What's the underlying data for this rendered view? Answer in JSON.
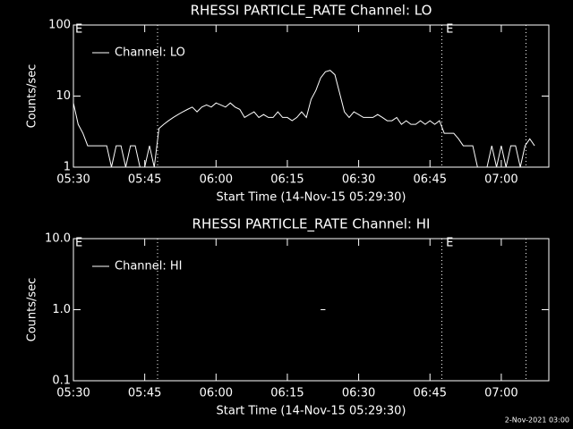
{
  "chart_data": [
    {
      "type": "line",
      "title": "RHESSI PARTICLE_RATE Channel: LO",
      "xlabel": "Start Time (14-Nov-15 05:29:30)",
      "ylabel": "Counts/sec",
      "log_y": true,
      "ylim": [
        1,
        100
      ],
      "yticks": [
        1,
        10,
        100
      ],
      "xlim": [
        0,
        100
      ],
      "xticks": [
        {
          "value": 0,
          "label": "05:30"
        },
        {
          "value": 15,
          "label": "05:45"
        },
        {
          "value": 30,
          "label": "06:00"
        },
        {
          "value": 45,
          "label": "06:15"
        },
        {
          "value": 60,
          "label": "06:30"
        },
        {
          "value": 75,
          "label": "06:45"
        },
        {
          "value": 90,
          "label": "07:00"
        }
      ],
      "event_lines": [
        17.7,
        77.5,
        95.2
      ],
      "annotations": [
        {
          "x": 0,
          "text": "E"
        },
        {
          "x": 78,
          "text": "E"
        }
      ],
      "legend": "upper left",
      "series": [
        {
          "name": "Channel: LO",
          "color": "#ffffff",
          "x": [
            0,
            1,
            2,
            3,
            4,
            5,
            6,
            7,
            8,
            9,
            10,
            11,
            12,
            13,
            14,
            15,
            16,
            17,
            18,
            19,
            20,
            21,
            22,
            23,
            24,
            25,
            26,
            27,
            28,
            29,
            30,
            31,
            32,
            33,
            34,
            35,
            36,
            37,
            38,
            39,
            40,
            41,
            42,
            43,
            44,
            45,
            46,
            47,
            48,
            49,
            50,
            51,
            52,
            53,
            54,
            55,
            56,
            57,
            58,
            59,
            60,
            61,
            62,
            63,
            64,
            65,
            66,
            67,
            68,
            69,
            70,
            71,
            72,
            73,
            74,
            75,
            76,
            77,
            78,
            79,
            80,
            81,
            82,
            83,
            84,
            85,
            86,
            87,
            88,
            89,
            90,
            91,
            92,
            93,
            94,
            95,
            96,
            97
          ],
          "values": [
            8,
            4,
            3,
            2,
            2,
            2,
            2,
            2,
            1,
            2,
            2,
            1,
            2,
            2,
            1,
            1,
            2,
            1,
            3.5,
            4,
            4.5,
            5,
            5.5,
            6,
            6.5,
            7,
            6,
            7,
            7.5,
            7,
            8,
            7.5,
            7,
            8,
            7,
            6.5,
            5,
            5.5,
            6,
            5,
            5.5,
            5,
            5,
            6,
            5,
            5,
            4.5,
            5,
            6,
            5,
            9,
            12,
            18,
            22,
            23,
            20,
            11,
            6,
            5,
            6,
            5.5,
            5,
            5,
            5,
            5.5,
            5,
            4.5,
            4.5,
            5,
            4,
            4.5,
            4,
            4,
            4.5,
            4,
            4.5,
            4,
            4.5,
            3,
            3,
            3,
            2.5,
            2,
            2,
            2,
            1,
            1,
            1,
            2,
            1,
            2,
            1,
            2,
            2,
            1,
            2,
            2.5,
            2
          ]
        }
      ]
    },
    {
      "type": "line",
      "title": "RHESSI PARTICLE_RATE Channel: HI",
      "xlabel": "Start Time (14-Nov-15 05:29:30)",
      "ylabel": "Counts/sec",
      "log_y": true,
      "ylim": [
        0.1,
        10
      ],
      "yticks": [
        0.1,
        {
          "value": 1,
          "label": "1.0"
        },
        {
          "value": 10,
          "label": "10.0"
        }
      ],
      "xlim": [
        0,
        100
      ],
      "xticks": [
        {
          "value": 0,
          "label": "05:30"
        },
        {
          "value": 15,
          "label": "05:45"
        },
        {
          "value": 30,
          "label": "06:00"
        },
        {
          "value": 45,
          "label": "06:15"
        },
        {
          "value": 60,
          "label": "06:30"
        },
        {
          "value": 75,
          "label": "06:45"
        },
        {
          "value": 90,
          "label": "07:00"
        }
      ],
      "event_lines": [
        17.7,
        77.5,
        95.2
      ],
      "annotations": [
        {
          "x": 0,
          "text": "E"
        },
        {
          "x": 78,
          "text": "E"
        }
      ],
      "legend": "upper left",
      "series": [
        {
          "name": "Channel: HI",
          "color": "#ffffff",
          "x": [
            52,
            53
          ],
          "values": [
            1,
            1
          ]
        }
      ]
    }
  ],
  "footer": "2-Nov-2021 03:00"
}
